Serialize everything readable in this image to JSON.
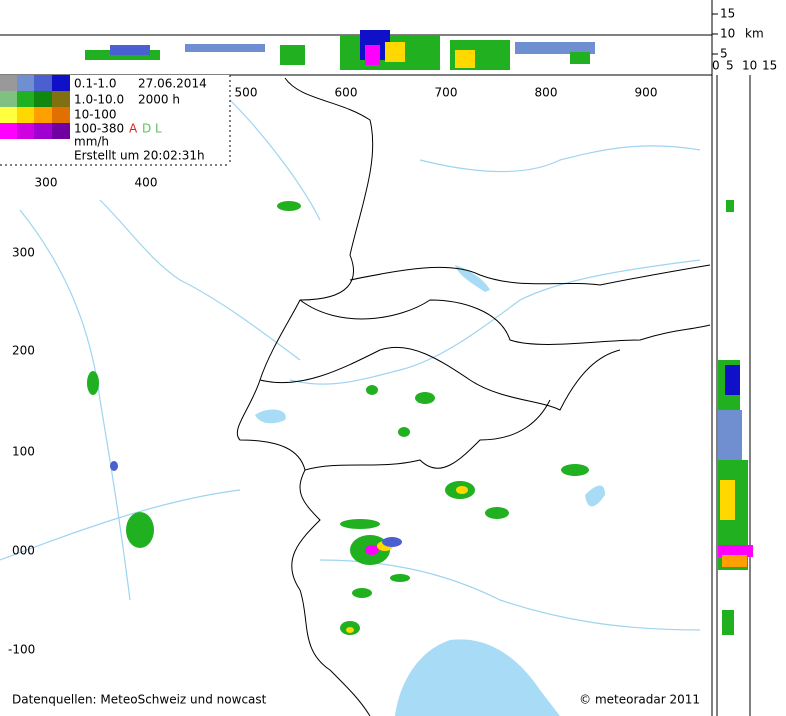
{
  "legend": {
    "rows": [
      {
        "range": "0.1-1.0",
        "info": "27.06.2014"
      },
      {
        "range": "1.0-10.0",
        "info": "2000 h"
      },
      {
        "range": "10-100"
      },
      {
        "range": "100-380",
        "flags": [
          "A",
          "D",
          "L"
        ]
      }
    ],
    "unit": "mm/h",
    "created": "Erstellt um 20:02:31h"
  },
  "x_labels": [
    "500",
    "600",
    "700",
    "800",
    "900"
  ],
  "x_labels_lower": [
    "300",
    "400"
  ],
  "y_labels": [
    "300",
    "200",
    "100",
    "000",
    "-100"
  ],
  "profile_top_ticks": [
    "15",
    "10",
    "5"
  ],
  "profile_unit": "km",
  "profile_right_ticks": [
    "0",
    "5",
    "10",
    "15"
  ],
  "footer": {
    "sources": "Datenquellen: MeteoSchweiz und nowcast",
    "copyright": "© meteoradar 2011"
  }
}
